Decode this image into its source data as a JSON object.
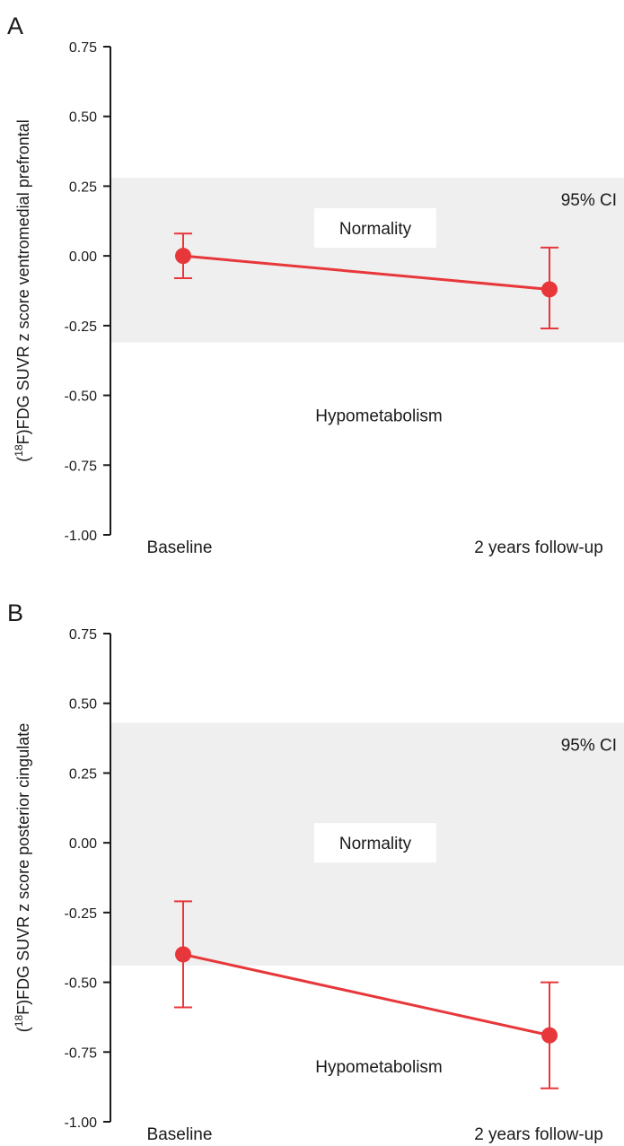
{
  "colors": {
    "band": "#efefef",
    "series": "#e8373a",
    "axis": "#1a1a1a",
    "label_box": "#ffffff"
  },
  "chart_data": [
    {
      "type": "line",
      "panel": "A",
      "ylabel_prefix": "(",
      "ylabel_sup": "18",
      "ylabel_main": "F)FDG SUVR z score ventromedial prefrontal",
      "categories": [
        "Baseline",
        "2 years follow-up"
      ],
      "yticks": [
        "0.75",
        "0.50",
        "0.25",
        "0.00",
        "-0.25",
        "-0.50",
        "-0.75",
        "-1.00"
      ],
      "ytick_values": [
        0.75,
        0.5,
        0.25,
        0,
        -0.25,
        -0.5,
        -0.75,
        -1.0
      ],
      "ylim": [
        -1.0,
        0.75
      ],
      "band": {
        "upper": 0.28,
        "lower": -0.31,
        "label": "95% CI"
      },
      "regions": {
        "upper": "Normality",
        "lower": "Hypometabolism"
      },
      "series": [
        {
          "values": [
            0.0,
            -0.12
          ],
          "err_low": [
            -0.08,
            -0.26
          ],
          "err_high": [
            0.08,
            0.03
          ]
        }
      ]
    },
    {
      "type": "line",
      "panel": "B",
      "ylabel_prefix": "(",
      "ylabel_sup": "18",
      "ylabel_main": "F)FDG SUVR z score posterior cingulate",
      "categories": [
        "Baseline",
        "2 years follow-up"
      ],
      "yticks": [
        "0.75",
        "0.50",
        "0.25",
        "0.00",
        "-0.25",
        "-0.50",
        "-0.75",
        "-1.00"
      ],
      "ytick_values": [
        0.75,
        0.5,
        0.25,
        0,
        -0.25,
        -0.5,
        -0.75,
        -1.0
      ],
      "ylim": [
        -1.0,
        0.75
      ],
      "band": {
        "upper": 0.43,
        "lower": -0.44,
        "label": "95% CI"
      },
      "regions": {
        "upper": "Normality",
        "lower": "Hypometabolism"
      },
      "series": [
        {
          "values": [
            -0.4,
            -0.69
          ],
          "err_low": [
            -0.59,
            -0.88
          ],
          "err_high": [
            -0.21,
            -0.5
          ]
        }
      ]
    }
  ]
}
